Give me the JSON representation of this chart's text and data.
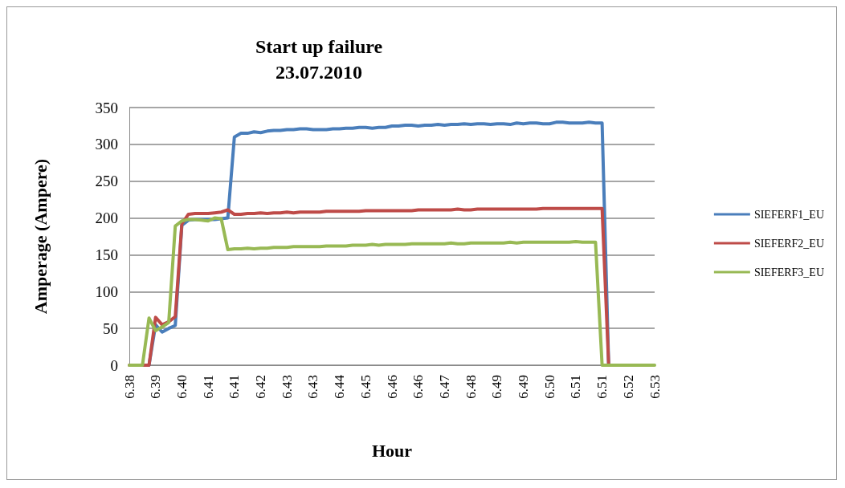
{
  "chart_data": {
    "type": "line",
    "title": "Start up failure\n23.07.2010",
    "xlabel": "Hour",
    "ylabel": "Amperage (Ampere)",
    "categories": [
      "6.38",
      null,
      null,
      null,
      "6.39",
      null,
      null,
      null,
      "6.40",
      null,
      null,
      null,
      "6.41",
      null,
      null,
      null,
      "6.41",
      null,
      null,
      null,
      "6.42",
      null,
      null,
      null,
      "6.43",
      null,
      null,
      null,
      "6.43",
      null,
      null,
      null,
      "6.44",
      null,
      null,
      null,
      "6.45",
      null,
      null,
      null,
      "6.46",
      null,
      null,
      null,
      "6.46",
      null,
      null,
      null,
      "6.47",
      null,
      null,
      null,
      "6.48",
      null,
      null,
      null,
      "6.49",
      null,
      null,
      null,
      "6.49",
      null,
      null,
      null,
      "6.50",
      null,
      null,
      null,
      "6.51",
      null,
      null,
      null,
      "6.51",
      null,
      null,
      null,
      "6.52",
      null,
      null,
      null,
      "6.53"
    ],
    "series": [
      {
        "name": "SIEFERF1_EU",
        "color": "#4a7ebb",
        "values": [
          null,
          null,
          0,
          0,
          55,
          45,
          50,
          54,
          190,
          197,
          198,
          198,
          198,
          198,
          199,
          200,
          310,
          315,
          315,
          317,
          316,
          318,
          319,
          319,
          320,
          320,
          321,
          321,
          320,
          320,
          320,
          321,
          321,
          322,
          322,
          323,
          323,
          322,
          323,
          323,
          325,
          325,
          326,
          326,
          325,
          326,
          326,
          327,
          326,
          327,
          327,
          328,
          327,
          328,
          328,
          327,
          328,
          328,
          327,
          329,
          328,
          329,
          329,
          328,
          328,
          330,
          330,
          329,
          329,
          329,
          330,
          329,
          329,
          0,
          0,
          null,
          null,
          null,
          null,
          null,
          null
        ]
      },
      {
        "name": "SIEFERF2_EU",
        "color": "#be4b48",
        "values": [
          0,
          0,
          0,
          0,
          65,
          55,
          59,
          66,
          192,
          205,
          206,
          206,
          206,
          207,
          208,
          211,
          205,
          205,
          206,
          206,
          207,
          206,
          207,
          207,
          208,
          207,
          208,
          208,
          208,
          208,
          209,
          209,
          209,
          209,
          209,
          209,
          210,
          210,
          210,
          210,
          210,
          210,
          210,
          210,
          211,
          211,
          211,
          211,
          211,
          211,
          212,
          211,
          211,
          212,
          212,
          212,
          212,
          212,
          212,
          212,
          212,
          212,
          212,
          213,
          213,
          213,
          213,
          213,
          213,
          213,
          213,
          213,
          213,
          0,
          0,
          0,
          null,
          null,
          null,
          null,
          null
        ]
      },
      {
        "name": "SIEFERF3_EU",
        "color": "#98b954",
        "values": [
          0,
          0,
          0,
          64,
          47,
          52,
          58,
          189,
          196,
          198,
          198,
          197,
          196,
          200,
          199,
          157,
          158,
          158,
          159,
          158,
          159,
          159,
          160,
          160,
          160,
          161,
          161,
          161,
          161,
          161,
          162,
          162,
          162,
          162,
          163,
          163,
          163,
          164,
          163,
          164,
          164,
          164,
          164,
          165,
          165,
          165,
          165,
          165,
          165,
          166,
          165,
          165,
          166,
          166,
          166,
          166,
          166,
          166,
          167,
          166,
          167,
          167,
          167,
          167,
          167,
          167,
          167,
          167,
          168,
          167,
          167,
          167,
          0,
          0,
          0,
          0,
          0,
          0,
          0,
          0,
          0
        ]
      }
    ],
    "ylim": [
      0,
      350
    ],
    "yticks": [
      0,
      50,
      100,
      150,
      200,
      250,
      300,
      350
    ],
    "grid": "y",
    "legend": "right",
    "marker": "none",
    "line_style": "solid"
  }
}
